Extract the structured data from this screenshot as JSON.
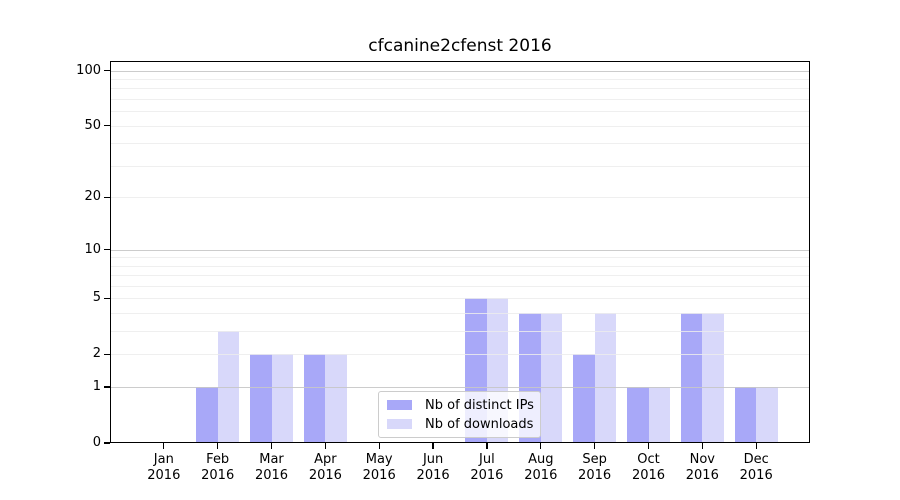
{
  "chart_data": {
    "type": "bar",
    "title": "cfcanine2cfenst 2016",
    "categories": [
      "Jan",
      "Feb",
      "Mar",
      "Apr",
      "May",
      "Jun",
      "Jul",
      "Aug",
      "Sep",
      "Oct",
      "Nov",
      "Dec"
    ],
    "category_year": "2016",
    "series": [
      {
        "name": "Nb of distinct IPs",
        "color": "#a8a8f8",
        "values": [
          0,
          1,
          2,
          2,
          0,
          0,
          5,
          4,
          2,
          1,
          4,
          1
        ]
      },
      {
        "name": "Nb of downloads",
        "color": "#d8d8fa",
        "values": [
          0,
          3,
          2,
          2,
          0,
          0,
          5,
          4,
          4,
          1,
          4,
          1
        ]
      }
    ],
    "yscale": "log1p",
    "ylim": [
      0,
      113
    ],
    "ytick_values": [
      0,
      1,
      2,
      5,
      10,
      20,
      50,
      100
    ],
    "grid_major_values": [
      1,
      10,
      100
    ],
    "grid_minor_values": [
      2,
      3,
      4,
      5,
      6,
      7,
      8,
      9,
      20,
      30,
      40,
      50,
      60,
      70,
      80,
      90
    ],
    "grid": true,
    "legend_position": "lower center",
    "xlabel": "",
    "ylabel": ""
  },
  "colors": {
    "bar_distinct_ips": "#a8a8f8",
    "bar_downloads": "#d8d8fa",
    "grid_major": "#c6c6c6",
    "grid_minor": "#ececec",
    "spine": "#000000",
    "legend_border": "#cccccc",
    "background": "#ffffff",
    "text": "#000000"
  }
}
